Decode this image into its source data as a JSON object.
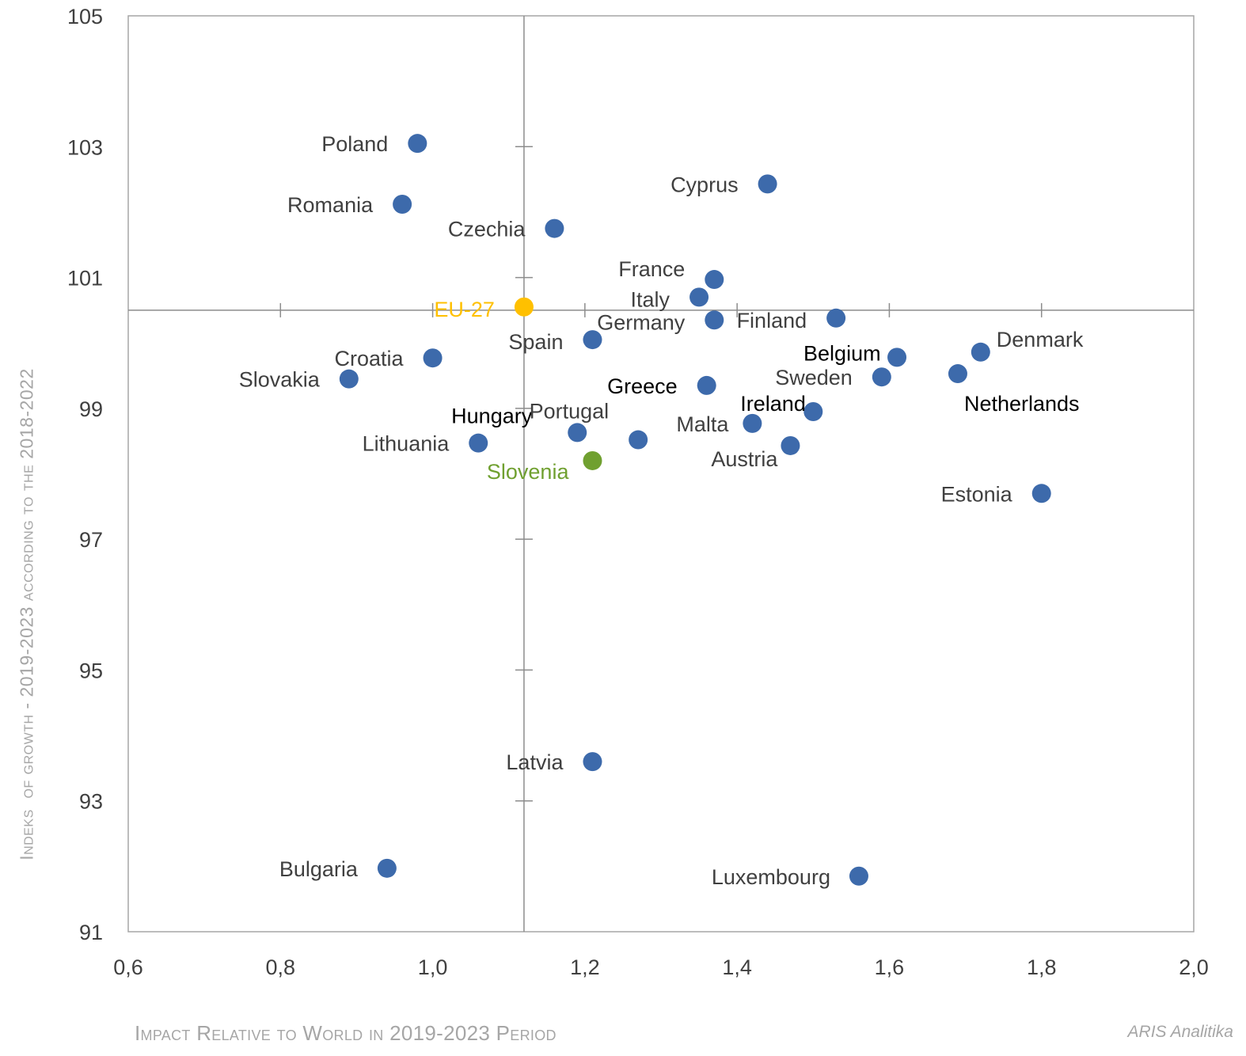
{
  "chart_data": {
    "type": "scatter",
    "xlabel": "Impact Relative to World in 2019-2023 Period",
    "ylabel": "Indeks of Growth - 2019-2023 according to the 2018-2022",
    "xlim": [
      0.6,
      2.0
    ],
    "ylim": [
      91,
      105
    ],
    "x_ticks": [
      "0,6",
      "0,8",
      "1,0",
      "1,2",
      "1,4",
      "1,6",
      "1,8",
      "2,0"
    ],
    "y_ticks": [
      "91",
      "93",
      "95",
      "97",
      "99",
      "101",
      "103",
      "105"
    ],
    "reference_lines": {
      "x": 1.12,
      "y": 100.5
    },
    "grid": false,
    "colors": {
      "point": "#3d6aab",
      "eu": "#ffc000",
      "slovenia": "#70a030",
      "label": "#404040",
      "axis": "#a6a6a6"
    },
    "points": [
      {
        "label": "Poland",
        "x": 0.98,
        "y": 103.05
      },
      {
        "label": "Romania",
        "x": 0.96,
        "y": 102.12
      },
      {
        "label": "Cyprus",
        "x": 1.44,
        "y": 102.43
      },
      {
        "label": "Czechia",
        "x": 1.16,
        "y": 101.75
      },
      {
        "label": "France",
        "x": 1.37,
        "y": 100.97
      },
      {
        "label": "Italy",
        "x": 1.35,
        "y": 100.7
      },
      {
        "label": "EU-27",
        "x": 1.12,
        "y": 100.55
      },
      {
        "label": "Germany",
        "x": 1.37,
        "y": 100.35
      },
      {
        "label": "Finland",
        "x": 1.53,
        "y": 100.38
      },
      {
        "label": "Spain",
        "x": 1.21,
        "y": 100.05
      },
      {
        "label": "Croatia",
        "x": 1.0,
        "y": 99.77
      },
      {
        "label": "Belgium",
        "x": 1.61,
        "y": 99.78
      },
      {
        "label": "Denmark",
        "x": 1.72,
        "y": 99.86
      },
      {
        "label": "Slovakia",
        "x": 0.89,
        "y": 99.45
      },
      {
        "label": "Sweden",
        "x": 1.59,
        "y": 99.48
      },
      {
        "label": "Netherlands",
        "x": 1.69,
        "y": 99.53
      },
      {
        "label": "Greece",
        "x": 1.36,
        "y": 99.35
      },
      {
        "label": "Ireland",
        "x": 1.5,
        "y": 98.95
      },
      {
        "label": "Hungary",
        "x": 1.19,
        "y": 98.63
      },
      {
        "label": "Malta",
        "x": 1.42,
        "y": 98.77
      },
      {
        "label": "Portugal",
        "x": 1.27,
        "y": 98.52
      },
      {
        "label": "Lithuania",
        "x": 1.06,
        "y": 98.47
      },
      {
        "label": "Austria",
        "x": 1.47,
        "y": 98.43
      },
      {
        "label": "Slovenia",
        "x": 1.21,
        "y": 98.2
      },
      {
        "label": "Estonia",
        "x": 1.8,
        "y": 97.7
      },
      {
        "label": "Latvia",
        "x": 1.21,
        "y": 93.6
      },
      {
        "label": "Bulgaria",
        "x": 0.94,
        "y": 91.97
      },
      {
        "label": "Luxembourg",
        "x": 1.56,
        "y": 91.85
      }
    ]
  },
  "ylabel_parts": [
    "I",
    "ndeks",
    "of growth",
    " - 2019-2023 ",
    "according to the",
    " 2018-2022"
  ],
  "xlabel_text": "Impact Relative to World in 2019-2023 Period",
  "source": "ARIS Analitika"
}
